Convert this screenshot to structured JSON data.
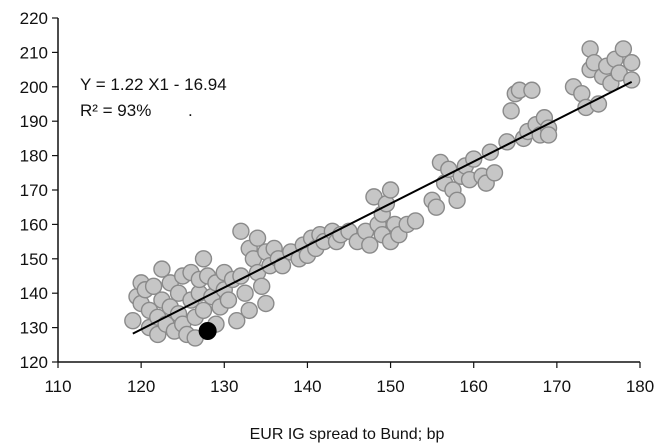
{
  "chart_data": {
    "type": "scatter",
    "title": "",
    "xlabel": "EUR IG spread to Bund; bp",
    "ylabel": "",
    "xlim": [
      110,
      180
    ],
    "ylim": [
      120,
      220
    ],
    "xticks": [
      110,
      120,
      130,
      140,
      150,
      160,
      170,
      180
    ],
    "yticks": [
      120,
      130,
      140,
      150,
      160,
      170,
      180,
      190,
      200,
      210,
      220
    ],
    "grid": false,
    "annotations": [
      "Y = 1.22 X1 - 16.94",
      "R² = 93%",
      "."
    ],
    "regression": {
      "slope": 1.22,
      "intercept": -16.94,
      "x_range": [
        119,
        179
      ]
    },
    "series": [
      {
        "points": [
          [
            119,
            132
          ],
          [
            119.5,
            139
          ],
          [
            120,
            143
          ],
          [
            120,
            137
          ],
          [
            120.5,
            141
          ],
          [
            121,
            135
          ],
          [
            121,
            130
          ],
          [
            121.5,
            142
          ],
          [
            122,
            133
          ],
          [
            122,
            128
          ],
          [
            122.5,
            147
          ],
          [
            122.5,
            138
          ],
          [
            123,
            131
          ],
          [
            123.5,
            143
          ],
          [
            123.5,
            136
          ],
          [
            124,
            129
          ],
          [
            124.5,
            140
          ],
          [
            124.5,
            134
          ],
          [
            125,
            145
          ],
          [
            125,
            131
          ],
          [
            125.5,
            128
          ],
          [
            126,
            146
          ],
          [
            126,
            138
          ],
          [
            126.5,
            133
          ],
          [
            126.5,
            127
          ],
          [
            127,
            140
          ],
          [
            127,
            144
          ],
          [
            127.5,
            150
          ],
          [
            127.5,
            135
          ],
          [
            128,
            145
          ],
          [
            128.5,
            139
          ],
          [
            129,
            143
          ],
          [
            129,
            131
          ],
          [
            129.5,
            136
          ],
          [
            130,
            146
          ],
          [
            130,
            141
          ],
          [
            130.5,
            138
          ],
          [
            131,
            144
          ],
          [
            131.5,
            132
          ],
          [
            132,
            158
          ],
          [
            132,
            145
          ],
          [
            132.5,
            140
          ],
          [
            133,
            153
          ],
          [
            133,
            135
          ],
          [
            133.5,
            150
          ],
          [
            134,
            156
          ],
          [
            134,
            146
          ],
          [
            134.5,
            142
          ],
          [
            135,
            152
          ],
          [
            135,
            137
          ],
          [
            135.5,
            148
          ],
          [
            136,
            153
          ],
          [
            136.5,
            150
          ],
          [
            137,
            148
          ],
          [
            138,
            152
          ],
          [
            139,
            150
          ],
          [
            139.5,
            154
          ],
          [
            140,
            151
          ],
          [
            140.5,
            156
          ],
          [
            141,
            153
          ],
          [
            141.5,
            157
          ],
          [
            142,
            155
          ],
          [
            143,
            158
          ],
          [
            143.5,
            155
          ],
          [
            144,
            157
          ],
          [
            145,
            158
          ],
          [
            146,
            155
          ],
          [
            147,
            158
          ],
          [
            147.5,
            154
          ],
          [
            148,
            168
          ],
          [
            148.5,
            160
          ],
          [
            149,
            163
          ],
          [
            149,
            157
          ],
          [
            149.5,
            166
          ],
          [
            150,
            170
          ],
          [
            150,
            155
          ],
          [
            150.5,
            160
          ],
          [
            151,
            157
          ],
          [
            152,
            160
          ],
          [
            153,
            161
          ],
          [
            155,
            167
          ],
          [
            155.5,
            165
          ],
          [
            156,
            178
          ],
          [
            156.5,
            172
          ],
          [
            157,
            176
          ],
          [
            157.5,
            170
          ],
          [
            158,
            167
          ],
          [
            158.5,
            174
          ],
          [
            159,
            177
          ],
          [
            159.5,
            173
          ],
          [
            160,
            179
          ],
          [
            161,
            174
          ],
          [
            161.5,
            172
          ],
          [
            162,
            181
          ],
          [
            162.5,
            175
          ],
          [
            164,
            184
          ],
          [
            164.5,
            193
          ],
          [
            165,
            198
          ],
          [
            165.5,
            199
          ],
          [
            166,
            185
          ],
          [
            166.5,
            187
          ],
          [
            167,
            199
          ],
          [
            167.5,
            189
          ],
          [
            168,
            186
          ],
          [
            168.5,
            191
          ],
          [
            169,
            188
          ],
          [
            169,
            186
          ],
          [
            172,
            200
          ],
          [
            173,
            198
          ],
          [
            173.5,
            194
          ],
          [
            174,
            205
          ],
          [
            174,
            211
          ],
          [
            174.5,
            207
          ],
          [
            175,
            195
          ],
          [
            175.5,
            203
          ],
          [
            176,
            206
          ],
          [
            176.5,
            201
          ],
          [
            177,
            208
          ],
          [
            177.5,
            204
          ],
          [
            178,
            211
          ],
          [
            179,
            207
          ],
          [
            179,
            202
          ]
        ],
        "color": "#c6c6c6",
        "edge_color": "#8a8a8a"
      },
      {
        "points": [
          [
            128,
            129
          ]
        ],
        "color": "#000000",
        "edge_color": "#000000"
      }
    ]
  }
}
